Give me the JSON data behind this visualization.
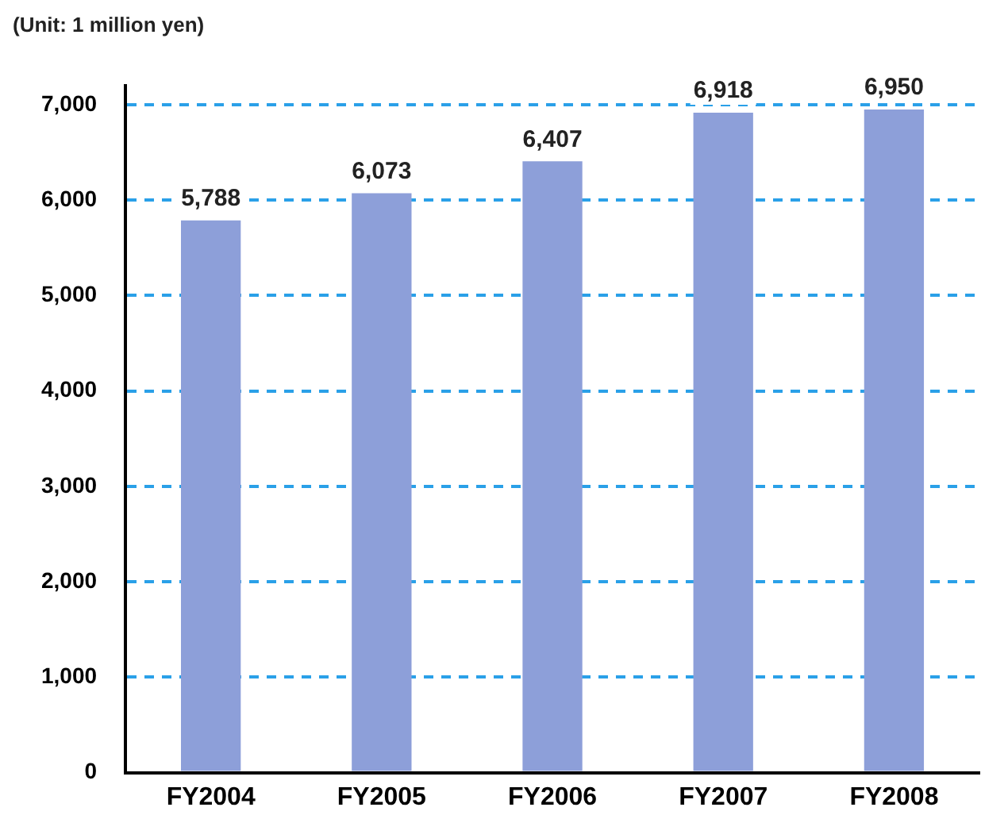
{
  "chart_data": {
    "type": "bar",
    "ylabel": "(Unit: 1 million yen)",
    "categories": [
      "FY2004",
      "FY2005",
      "FY2006",
      "FY2007",
      "FY2008"
    ],
    "values": [
      5788,
      6073,
      6407,
      6918,
      6950
    ],
    "value_labels": [
      "5,788",
      "6,073",
      "6,407",
      "6,918",
      "6,950"
    ],
    "color": "#8d9fd9",
    "ylim": [
      0,
      7200
    ],
    "yticks": [
      0,
      {
        "value": 1000,
        "label": "1,000"
      },
      {
        "value": 2000,
        "label": "2,000"
      },
      {
        "value": 3000,
        "label": "3,000"
      },
      {
        "value": 4000,
        "label": "4,000"
      },
      {
        "value": 5000,
        "label": "5,000"
      },
      {
        "value": 6000,
        "label": "6,000"
      },
      {
        "value": 7000,
        "label": "7,000"
      }
    ],
    "grid": "y",
    "legend": false
  }
}
